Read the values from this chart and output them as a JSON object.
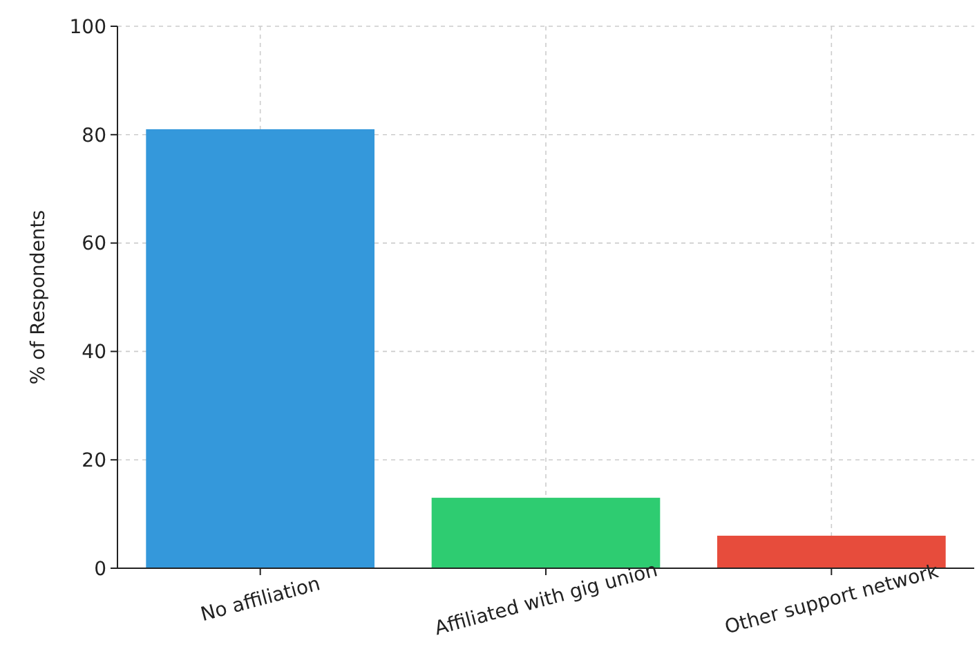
{
  "chart_data": {
    "type": "bar",
    "ylabel": "% of Respondents",
    "categories": [
      "No affiliation",
      "Affiliated with gig union",
      "Other support network"
    ],
    "values": [
      81,
      13,
      6
    ],
    "colors": [
      "#3498db",
      "#2ecc71",
      "#e74c3c"
    ],
    "ylim": [
      0,
      100
    ],
    "yticks": [
      0,
      20,
      40,
      60,
      80,
      100
    ],
    "grid": true
  }
}
